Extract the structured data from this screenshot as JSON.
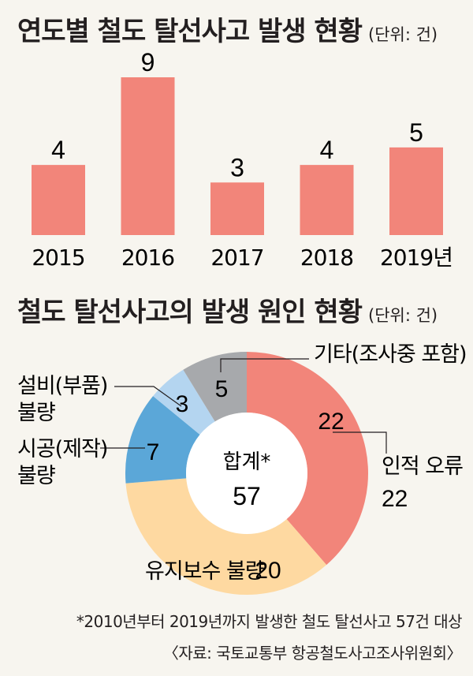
{
  "bar_title": "연도별 철도 탈선사고 발생 현황",
  "bar_unit": "(단위: 건)",
  "donut_title": "철도 탈선사고의 발생 원인 현황",
  "donut_unit": "(단위: 건)",
  "footnote": "*2010년부터 2019년까지 발생한 철도 탈선사고 57건 대상",
  "source": "〈자료: 국토교통부 항공철도사고조사위원회〉",
  "colors": {
    "bar": "#f2857a",
    "human": "#f2857a",
    "maintenance": "#fed9a1",
    "construction": "#5ba7d8",
    "equipment": "#b4d5f0",
    "other": "#a7a9ac",
    "background": "#f7f5ef"
  },
  "chart_data": [
    {
      "type": "bar",
      "categories": [
        "2015",
        "2016",
        "2017",
        "2018",
        "2019년"
      ],
      "values": [
        4,
        9,
        3,
        4,
        5
      ],
      "ylim": [
        0,
        9
      ]
    },
    {
      "type": "pie",
      "center_label": "합계*",
      "center_value": "57",
      "labels": [
        "인적 오류",
        "유지보수 불량",
        "시공(제작) 불량",
        "설비(부품) 불량",
        "기타(조사중 포함)"
      ],
      "values": [
        22,
        20,
        7,
        3,
        5
      ]
    }
  ]
}
